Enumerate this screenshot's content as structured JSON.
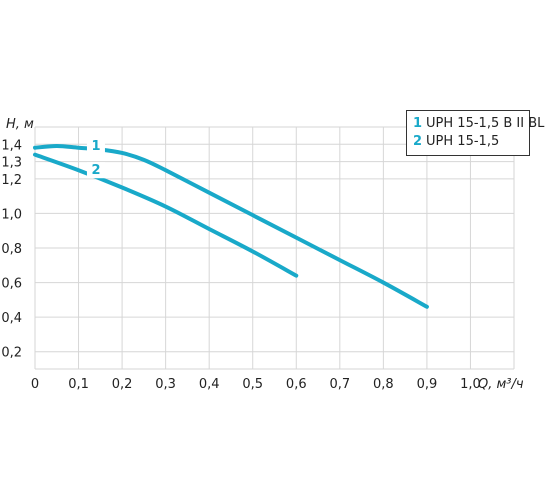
{
  "chart_data": {
    "type": "line",
    "xlabel": "Q, м³/ч",
    "ylabel": "H, м",
    "xlim": [
      0,
      1.1
    ],
    "ylim": [
      0.1,
      1.5
    ],
    "x_ticks": [
      "0",
      "0,1",
      "0,2",
      "0,3",
      "0,4",
      "0,5",
      "0,6",
      "0,7",
      "0,8",
      "0,9",
      "1,0"
    ],
    "y_ticks": [
      "0,2",
      "0,4",
      "0,6",
      "0,8",
      "1,0",
      "1,2",
      "1,3",
      "1,4"
    ],
    "grid": true,
    "legend_position": "top-right",
    "series": [
      {
        "name": "UPH 15-1,5 B II BL",
        "number": "1",
        "color": "#19a9c9",
        "x": [
          0.0,
          0.05,
          0.1,
          0.15,
          0.2,
          0.25,
          0.3,
          0.4,
          0.5,
          0.6,
          0.7,
          0.8,
          0.9
        ],
        "y": [
          1.38,
          1.39,
          1.38,
          1.37,
          1.35,
          1.31,
          1.25,
          1.12,
          0.99,
          0.86,
          0.73,
          0.6,
          0.46
        ]
      },
      {
        "name": "UPH 15-1,5",
        "number": "2",
        "color": "#19a9c9",
        "x": [
          0.0,
          0.1,
          0.2,
          0.3,
          0.4,
          0.5,
          0.6
        ],
        "y": [
          1.34,
          1.25,
          1.15,
          1.04,
          0.91,
          0.78,
          0.64
        ]
      }
    ]
  }
}
